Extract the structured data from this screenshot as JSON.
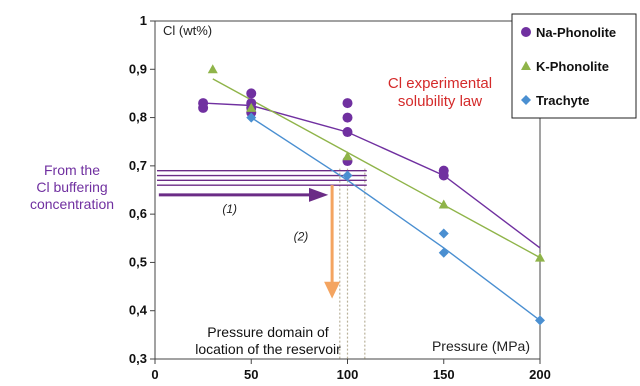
{
  "chart_data": {
    "type": "scatter",
    "ylabel": "Cl (wt%)",
    "xlabel": "Pressure (MPa)",
    "xlim": [
      0,
      200
    ],
    "ylim": [
      0.3,
      1.0
    ],
    "x_ticks": [
      "0",
      "50",
      "100",
      "150",
      "200"
    ],
    "y_ticks": [
      "0,3",
      "0,4",
      "0,5",
      "0,6",
      "0,7",
      "0,8",
      "0,9",
      "1"
    ],
    "grid": false,
    "legend_position": "top-right",
    "series": [
      {
        "name": "Na-Phonolite",
        "color": "#7030a0",
        "marker": "circle",
        "points": [
          [
            25,
            0.83
          ],
          [
            25,
            0.82
          ],
          [
            50,
            0.85
          ],
          [
            50,
            0.83
          ],
          [
            50,
            0.82
          ],
          [
            50,
            0.81
          ],
          [
            100,
            0.83
          ],
          [
            100,
            0.8
          ],
          [
            100,
            0.77
          ],
          [
            100,
            0.71
          ],
          [
            150,
            0.69
          ],
          [
            150,
            0.68
          ]
        ],
        "trend": [
          [
            25,
            0.83
          ],
          [
            50,
            0.825
          ],
          [
            100,
            0.77
          ],
          [
            150,
            0.68
          ],
          [
            200,
            0.53
          ]
        ]
      },
      {
        "name": "K-Phonolite",
        "color": "#8fb449",
        "marker": "triangle",
        "points": [
          [
            30,
            0.9
          ],
          [
            50,
            0.82
          ],
          [
            100,
            0.72
          ],
          [
            150,
            0.62
          ],
          [
            200,
            0.51
          ]
        ],
        "trend": [
          [
            30,
            0.88
          ],
          [
            200,
            0.51
          ]
        ]
      },
      {
        "name": "Trachyte",
        "color": "#4a8fd1",
        "marker": "diamond",
        "points": [
          [
            50,
            0.8
          ],
          [
            100,
            0.68
          ],
          [
            150,
            0.56
          ],
          [
            150,
            0.52
          ],
          [
            200,
            0.38
          ]
        ],
        "trend": [
          [
            50,
            0.8
          ],
          [
            100,
            0.67
          ],
          [
            150,
            0.53
          ],
          [
            200,
            0.38
          ]
        ]
      }
    ],
    "annotations": {
      "title": "Cl experimental solubility law",
      "title_lines": [
        "Cl experimental",
        "solubility law"
      ],
      "left_label_lines": [
        "From the",
        "Cl buffering",
        "concentration"
      ],
      "step1": "(1)",
      "step2": "(2)",
      "domain_lines": [
        "Pressure domain of",
        "location of the reservoir"
      ],
      "buffer_levels": [
        0.69,
        0.68,
        0.67,
        0.66
      ],
      "pressure_domain": [
        96,
        100,
        109
      ]
    }
  }
}
